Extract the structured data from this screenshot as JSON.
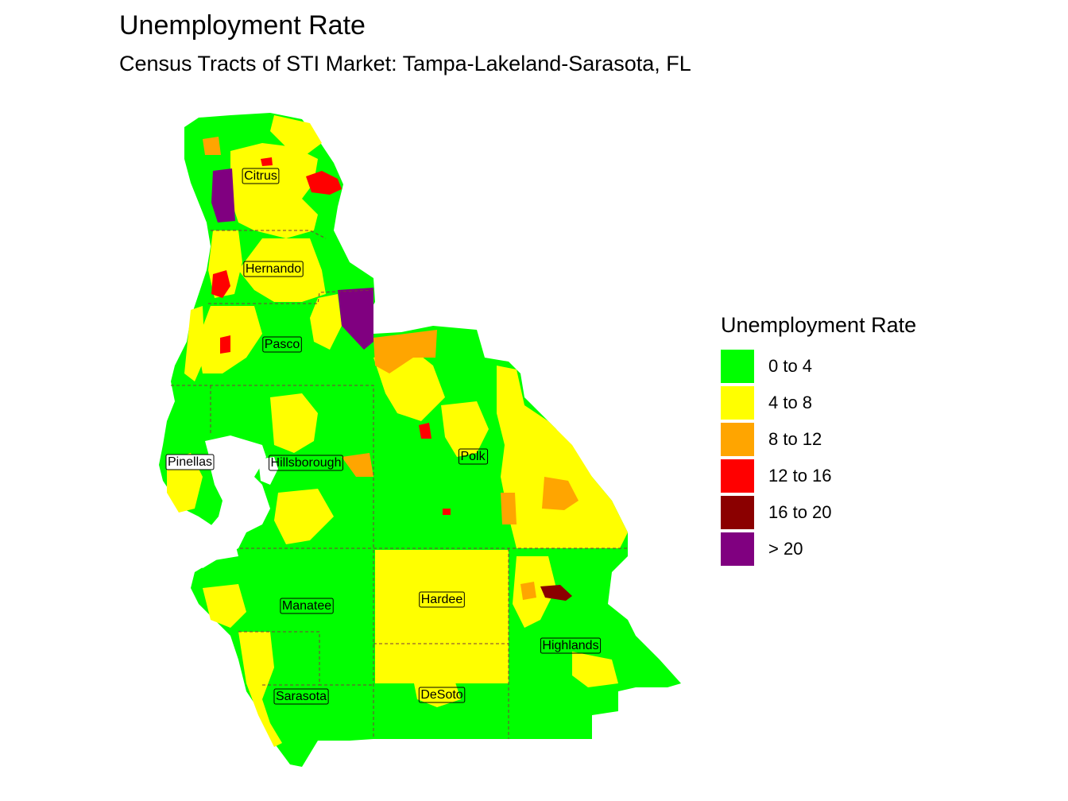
{
  "title": "Unemployment Rate",
  "subtitle": "Census Tracts of STI Market: Tampa-Lakeland-Sarasota, FL",
  "legend": {
    "title": "Unemployment Rate",
    "items": [
      {
        "label": "0 to 4",
        "color": "#00FF00"
      },
      {
        "label": "4 to 8",
        "color": "#FFFF00"
      },
      {
        "label": "8 to 12",
        "color": "#FFA500"
      },
      {
        "label": "12 to 16",
        "color": "#FF0000"
      },
      {
        "label": "16 to 20",
        "color": "#8B0000"
      },
      {
        "label": "> 20",
        "color": "#800080"
      }
    ]
  },
  "counties": [
    {
      "name": "Citrus"
    },
    {
      "name": "Hernando"
    },
    {
      "name": "Pasco"
    },
    {
      "name": "Pinellas"
    },
    {
      "name": "Hillsborough"
    },
    {
      "name": "Polk"
    },
    {
      "name": "Manatee"
    },
    {
      "name": "Hardee"
    },
    {
      "name": "Highlands"
    },
    {
      "name": "Sarasota"
    },
    {
      "name": "DeSoto"
    }
  ]
}
